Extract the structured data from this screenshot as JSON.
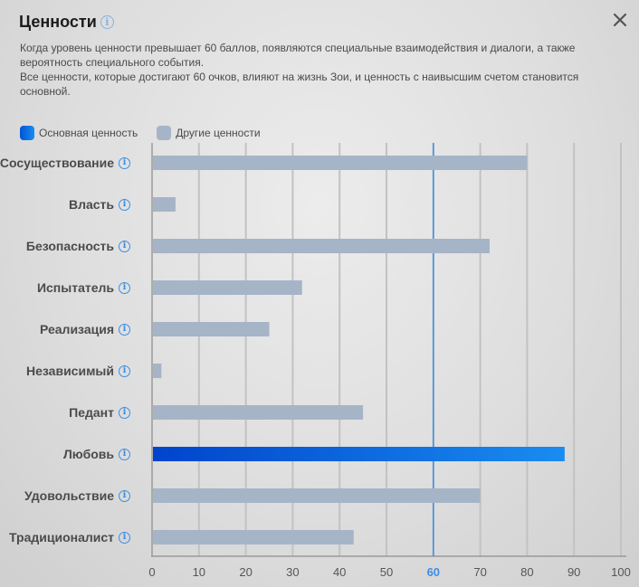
{
  "header": {
    "title": "Ценности",
    "info_icon": "info-icon",
    "close_icon": "close-icon"
  },
  "description": {
    "line1": "Когда уровень ценности превышает 60 баллов, появляются специальные взаимодействия и диалоги, а также вероятность специального события.",
    "line2": "Все ценности, которые достигают 60 очков, влияют на жизнь Зои, и ценность с наивысшим счетом становится основной."
  },
  "legend": {
    "primary_label": "Основная ценность",
    "other_label": "Другие ценности"
  },
  "colors": {
    "primary_start": "#0044cc",
    "primary_end": "#1a8cf0",
    "other": "#a6b4c8",
    "threshold": "#3b8ee6",
    "grid": "#c2c2c2"
  },
  "chart_data": {
    "type": "bar",
    "orientation": "horizontal",
    "categories": [
      "Сосуществование",
      "Власть",
      "Безопасность",
      "Испытатель",
      "Реализация",
      "Независимый",
      "Педант",
      "Любовь",
      "Удовольствие",
      "Традиционалист"
    ],
    "values": [
      80,
      5,
      72,
      32,
      25,
      2,
      45,
      88,
      70,
      43
    ],
    "primary_index": 7,
    "threshold": 60,
    "xlim": [
      0,
      100
    ],
    "xticks": [
      "0",
      "10",
      "20",
      "30",
      "40",
      "50",
      "60",
      "70",
      "80",
      "90",
      "100"
    ],
    "grid": true
  }
}
